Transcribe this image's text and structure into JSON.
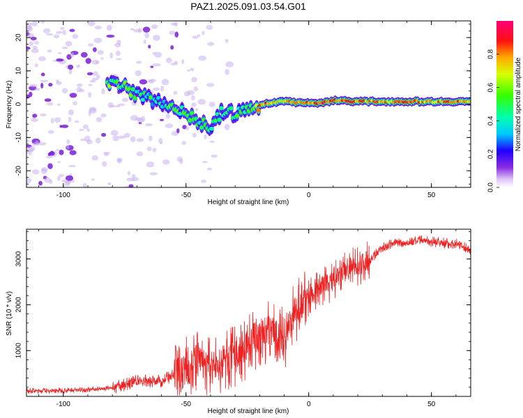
{
  "figure_title": "PAZ1.2025.091.03.54.G01",
  "colors": {
    "snr_line": "#ee2222",
    "spec_blob": "#7a1fd6",
    "spec_faint": "#c9b0ee",
    "axes": "#000000"
  },
  "chart_data": [
    {
      "type": "heatmap",
      "name": "spectrogram",
      "title": "",
      "xlabel": "Height of straight line (km)",
      "ylabel": "Frequency (Hz)",
      "xlim": [
        -115,
        66
      ],
      "ylim": [
        -25,
        25
      ],
      "xticks": [
        -100,
        -50,
        0,
        50
      ],
      "yticks": [
        -20,
        -10,
        0,
        10,
        20
      ],
      "colorbar": {
        "label": "Normalized spectral amplitude",
        "range": [
          0,
          1
        ],
        "ticks": [
          "0.0",
          "0.2",
          "0.4",
          "0.6",
          "0.8"
        ],
        "colormap": "hsv-rainbow (white→violet→blue→cyan→green→yellow→red→magenta)"
      },
      "signal_ridge": [
        {
          "x": -82,
          "y": 6,
          "amp": 0.55
        },
        {
          "x": -76,
          "y": 5.5,
          "amp": 0.5
        },
        {
          "x": -70,
          "y": 3,
          "amp": 0.45
        },
        {
          "x": -62,
          "y": 1,
          "amp": 0.4
        },
        {
          "x": -55,
          "y": -0.5,
          "amp": 0.5
        },
        {
          "x": -50,
          "y": -3,
          "amp": 0.55
        },
        {
          "x": -45,
          "y": -5,
          "amp": 0.5
        },
        {
          "x": -40,
          "y": -7.5,
          "amp": 0.45
        },
        {
          "x": -35,
          "y": -2,
          "amp": 0.5
        },
        {
          "x": -30,
          "y": -3,
          "amp": 0.5
        },
        {
          "x": -25,
          "y": -1.5,
          "amp": 0.55
        },
        {
          "x": -18,
          "y": 0,
          "amp": 0.85
        },
        {
          "x": -10,
          "y": 1,
          "amp": 0.7
        },
        {
          "x": -5,
          "y": 0.5,
          "amp": 0.75
        },
        {
          "x": 0,
          "y": 0.5,
          "amp": 0.8
        },
        {
          "x": 5,
          "y": 0.2,
          "amp": 0.85
        },
        {
          "x": 10,
          "y": 1.2,
          "amp": 0.8
        },
        {
          "x": 15,
          "y": 1,
          "amp": 0.85
        },
        {
          "x": 20,
          "y": 0.8,
          "amp": 0.8
        },
        {
          "x": 30,
          "y": 0.8,
          "amp": 0.75
        },
        {
          "x": 40,
          "y": 0.8,
          "amp": 0.8
        },
        {
          "x": 50,
          "y": 0.8,
          "amp": 0.75
        },
        {
          "x": 60,
          "y": 0.8,
          "amp": 0.8
        },
        {
          "x": 66,
          "y": 0.8,
          "amp": 0.75
        }
      ]
    },
    {
      "type": "line",
      "name": "snr",
      "title": "",
      "xlabel": "Height of straight line (km)",
      "ylabel": "SNR (10 * v/v)",
      "xlim": [
        -115,
        66
      ],
      "ylim": [
        0,
        3650
      ],
      "xticks": [
        -100,
        -50,
        0,
        50
      ],
      "yticks": [
        1000,
        2000,
        3000
      ],
      "series": [
        {
          "name": "SNR",
          "x": [
            -115,
            -100,
            -90,
            -80,
            -75,
            -70,
            -60,
            -55,
            -50,
            -45,
            -40,
            -35,
            -30,
            -25,
            -20,
            -15,
            -10,
            -5,
            0,
            5,
            10,
            15,
            20,
            25,
            30,
            35,
            40,
            45,
            50,
            55,
            60,
            66
          ],
          "y": [
            120,
            130,
            150,
            180,
            260,
            330,
            350,
            450,
            600,
            780,
            600,
            720,
            850,
            1100,
            1350,
            1450,
            1250,
            1900,
            2200,
            2400,
            2500,
            2750,
            2850,
            3000,
            3250,
            3350,
            3350,
            3400,
            3380,
            3350,
            3330,
            3200
          ]
        }
      ]
    }
  ]
}
